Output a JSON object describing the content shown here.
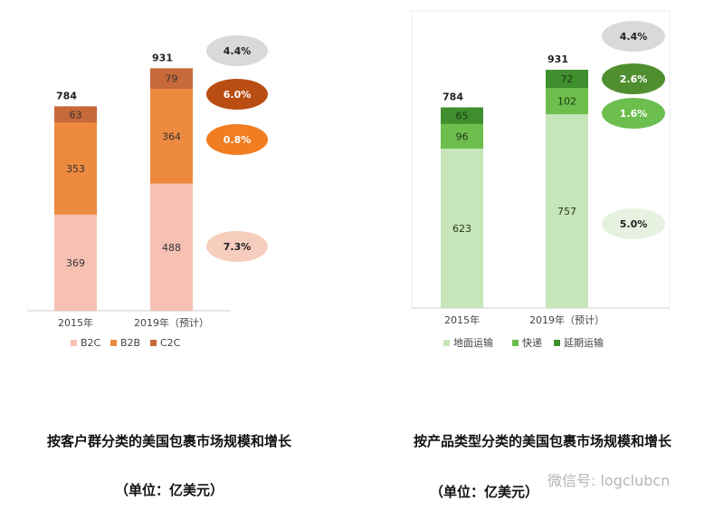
{
  "chart_data": [
    {
      "type": "bar",
      "stacked": true,
      "categories": [
        "2015年",
        "2019年（预计）"
      ],
      "totals": [
        "784",
        "931"
      ],
      "series": [
        {
          "name": "B2C",
          "values": [
            369,
            488
          ],
          "color": "#f6c0b3"
        },
        {
          "name": "B2B",
          "values": [
            353,
            364
          ],
          "color": "#ee8a3f"
        },
        {
          "name": "C2C",
          "values": [
            63,
            79
          ],
          "color": "#c8693a"
        }
      ],
      "growth": [
        {
          "label": "4.4%",
          "fill": "#d9d9d9",
          "text": "#222222"
        },
        {
          "label": "6.0%",
          "fill": "#b94d12",
          "text": "#ffffff"
        },
        {
          "label": "0.8%",
          "fill": "#f07d22",
          "text": "#ffffff"
        },
        {
          "label": "7.3%",
          "fill": "#f7cdbd",
          "text": "#222222"
        }
      ],
      "ylim": [
        0,
        1000
      ],
      "legend": "bottom",
      "title": "按客户群分类的美国包裹市场规模和增长",
      "subtitle": "（单位：亿美元）"
    },
    {
      "type": "bar",
      "stacked": true,
      "categories": [
        "2015年",
        "2019年（预计）"
      ],
      "totals": [
        "784",
        "931"
      ],
      "series": [
        {
          "name": "地面运输",
          "values": [
            623,
            757
          ],
          "color": "#c6e5b8"
        },
        {
          "name": "快递",
          "values": [
            96,
            102
          ],
          "color": "#6dbe4c"
        },
        {
          "name": "延期运输",
          "values": [
            65,
            72
          ],
          "color": "#3f8f2e"
        }
      ],
      "growth": [
        {
          "label": "4.4%",
          "fill": "#d9d9d9",
          "text": "#222222"
        },
        {
          "label": "2.6%",
          "fill": "#4f8f2f",
          "text": "#ffffff"
        },
        {
          "label": "1.6%",
          "fill": "#6cbf4f",
          "text": "#ffffff"
        },
        {
          "label": "5.0%",
          "fill": "#e6f2df",
          "text": "#222222"
        }
      ],
      "ylim": [
        0,
        1000
      ],
      "legend": "bottom",
      "title": "按产品类型分类的美国包裹市场规模和增长",
      "subtitle": "（单位：亿美元）"
    }
  ],
  "watermark": "微信号: logclubcn"
}
